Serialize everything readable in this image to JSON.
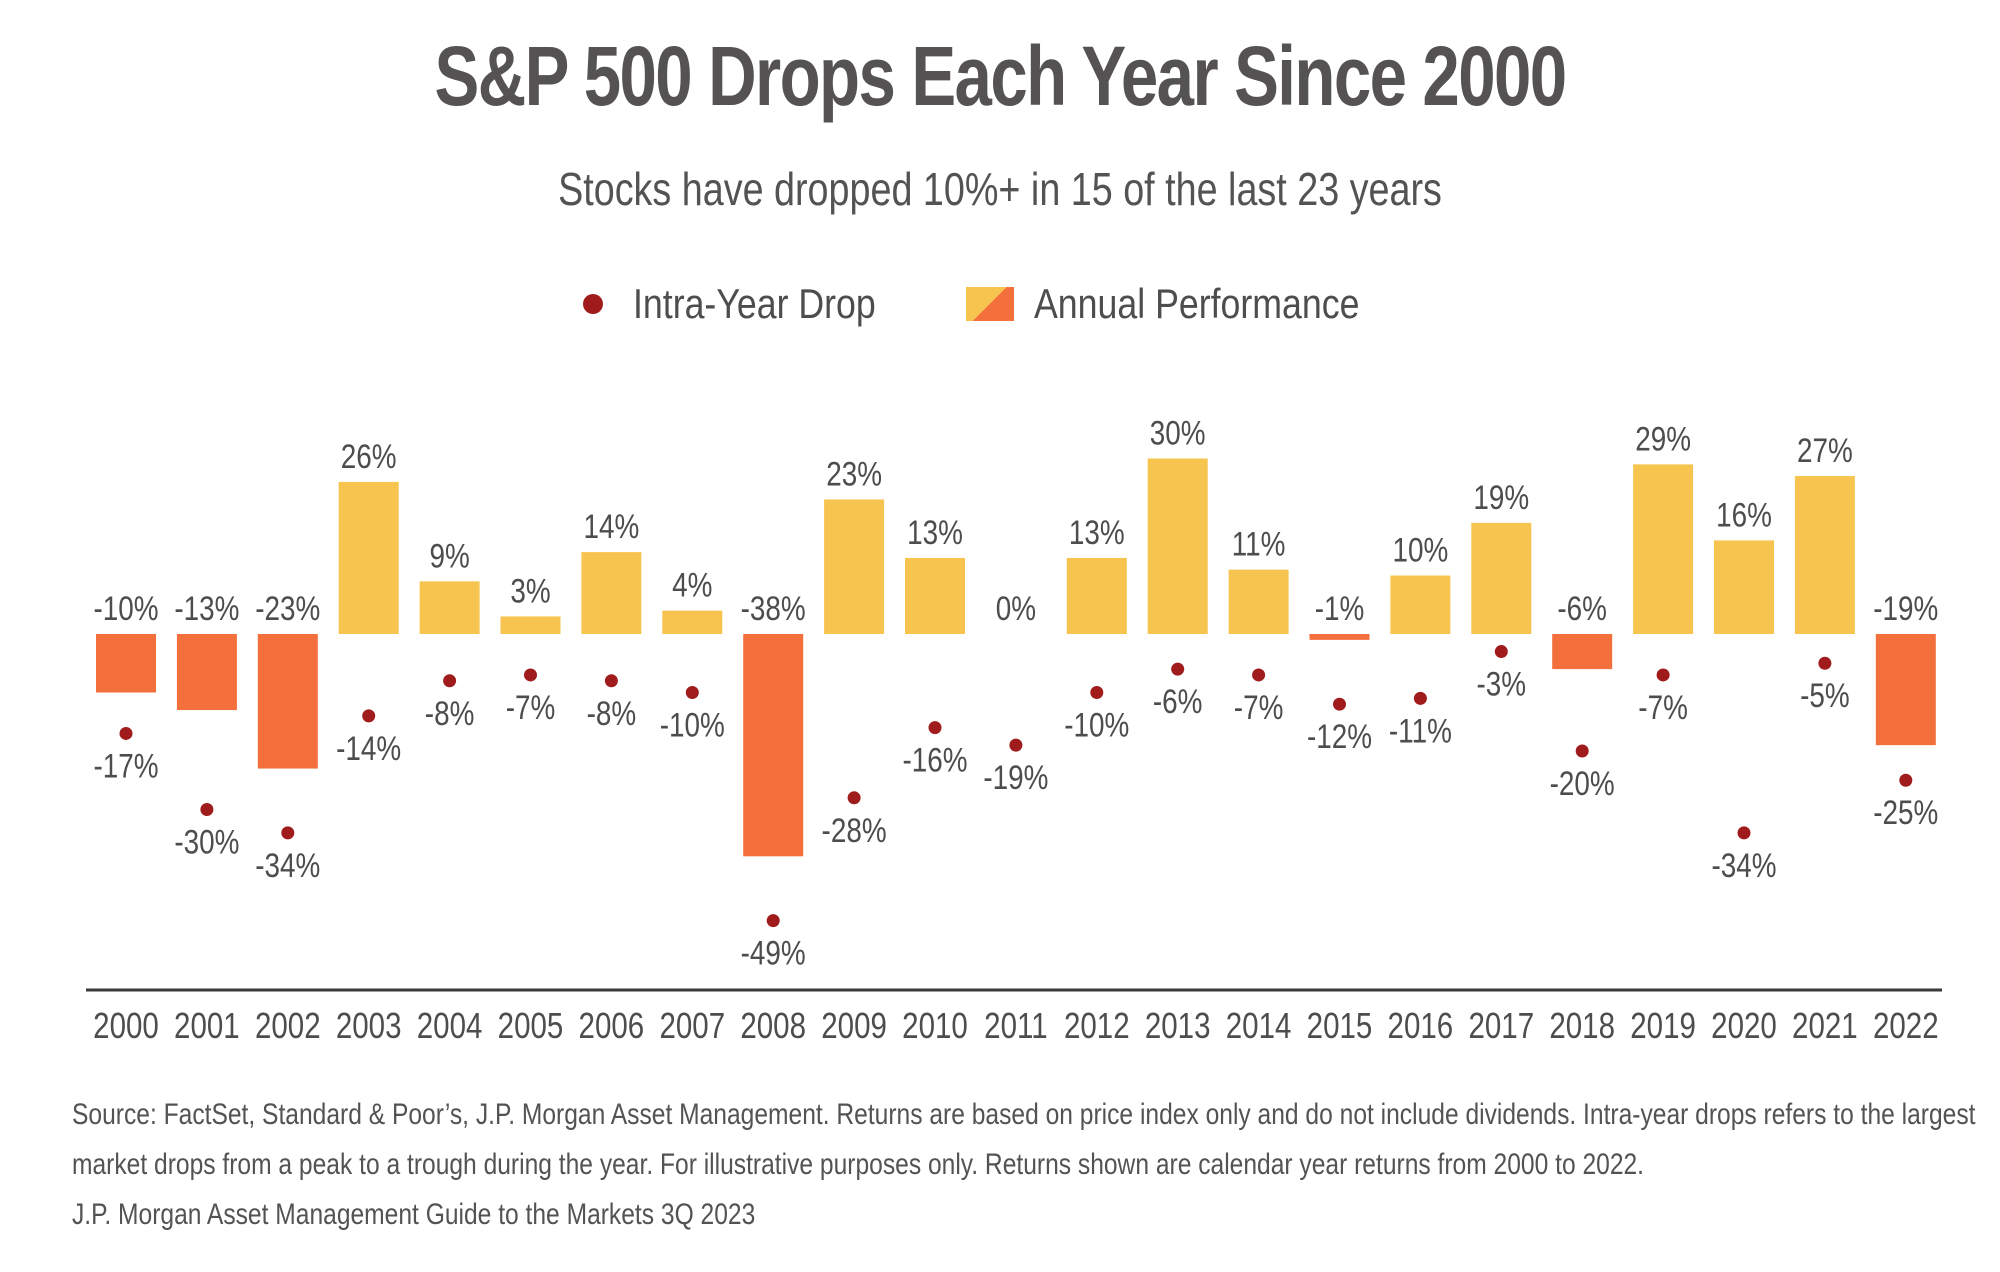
{
  "title": "S&P 500 Drops Each Year Since 2000",
  "subtitle": "Stocks have dropped 10%+ in 15 of the last 23 years",
  "legend": {
    "intra_year_drop": "Intra-Year Drop",
    "annual_performance": "Annual Performance"
  },
  "colors": {
    "positive_bar": "#f7c54f",
    "negative_bar": "#f36f3b",
    "dot": "#a01c1c",
    "axis": "#3a3a3a",
    "text": "#4d4d4d"
  },
  "source": {
    "line1": "Source: FactSet, Standard & Poor’s, J.P. Morgan Asset Management. Returns are based on price index only and do not include dividends. Intra-year drops refers to the largest",
    "line2": "market drops from a peak to a trough during the year. For illustrative purposes only. Returns shown are calendar year returns from 2000 to 2022.",
    "line3": "J.P. Morgan Asset Management Guide to the Markets 3Q 2023"
  },
  "chart_data": {
    "type": "bar",
    "categories": [
      "2000",
      "2001",
      "2002",
      "2003",
      "2004",
      "2005",
      "2006",
      "2007",
      "2008",
      "2009",
      "2010",
      "2011",
      "2012",
      "2013",
      "2014",
      "2015",
      "2016",
      "2017",
      "2018",
      "2019",
      "2020",
      "2021",
      "2022"
    ],
    "series": [
      {
        "name": "Annual Performance",
        "type": "bar",
        "values": [
          -10,
          -13,
          -23,
          26,
          9,
          3,
          14,
          4,
          -38,
          23,
          13,
          0,
          13,
          30,
          11,
          -1,
          10,
          19,
          -6,
          29,
          16,
          27,
          -19
        ]
      },
      {
        "name": "Intra-Year Drop",
        "type": "scatter",
        "values": [
          -17,
          -30,
          -34,
          -14,
          -8,
          -7,
          -8,
          -10,
          -49,
          -28,
          -16,
          -19,
          -10,
          -6,
          -7,
          -12,
          -11,
          -3,
          -20,
          -7,
          -34,
          -5,
          -25
        ]
      }
    ],
    "legend_position": "top-center",
    "grid": false
  }
}
